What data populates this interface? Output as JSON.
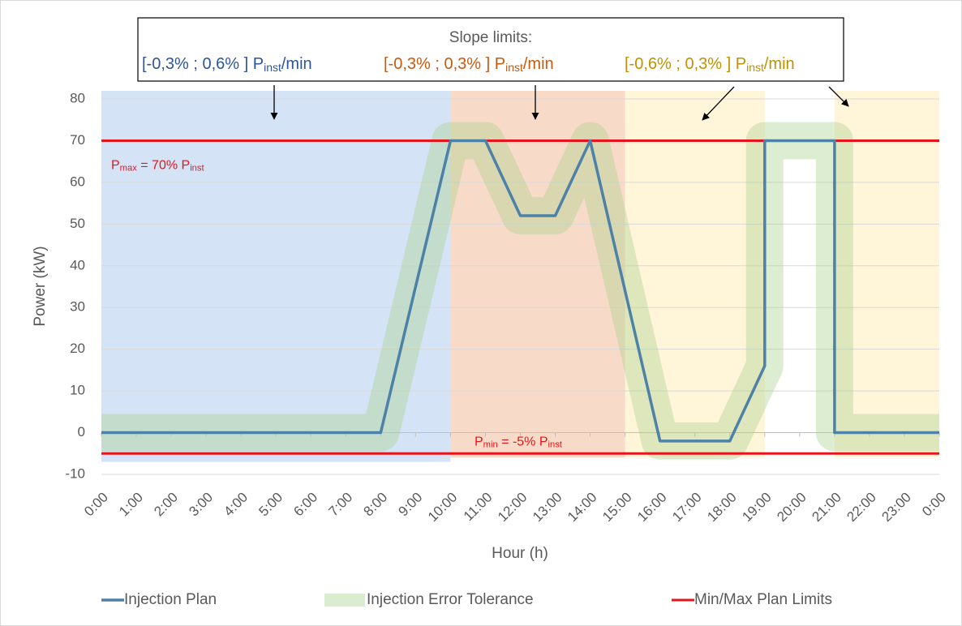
{
  "chart_data": {
    "type": "line",
    "y_label": "Power (kW)",
    "x_label": "Hour (h)",
    "xlim": [
      0,
      24
    ],
    "xticks": [
      {
        "value": 0,
        "label": "0:00"
      },
      {
        "value": 1,
        "label": "1:00"
      },
      {
        "value": 2,
        "label": "2:00"
      },
      {
        "value": 3,
        "label": "3:00"
      },
      {
        "value": 4,
        "label": "4:00"
      },
      {
        "value": 5,
        "label": "5:00"
      },
      {
        "value": 6,
        "label": "6:00"
      },
      {
        "value": 7,
        "label": "7:00"
      },
      {
        "value": 8,
        "label": "8:00"
      },
      {
        "value": 9,
        "label": "9:00"
      },
      {
        "value": 10,
        "label": "10:00"
      },
      {
        "value": 11,
        "label": "11:00"
      },
      {
        "value": 12,
        "label": "12:00"
      },
      {
        "value": 13,
        "label": "13:00"
      },
      {
        "value": 14,
        "label": "14:00"
      },
      {
        "value": 15,
        "label": "15:00"
      },
      {
        "value": 16,
        "label": "16:00"
      },
      {
        "value": 17,
        "label": "17:00"
      },
      {
        "value": 18,
        "label": "18:00"
      },
      {
        "value": 19,
        "label": "19:00"
      },
      {
        "value": 20,
        "label": "20:00"
      },
      {
        "value": 21,
        "label": "21:00"
      },
      {
        "value": 22,
        "label": "22:00"
      },
      {
        "value": 23,
        "label": "23:00"
      },
      {
        "value": 24,
        "label": "0:00"
      }
    ],
    "ylim": [
      -10,
      80
    ],
    "yticks": [
      -10,
      0,
      10,
      20,
      30,
      40,
      50,
      60,
      70,
      80
    ],
    "grid": true,
    "legend": "bottom",
    "series": [
      {
        "name": "Injection Plan",
        "color": "#4e81a8",
        "x": [
          0,
          8,
          10,
          11,
          12,
          13,
          14,
          16,
          18,
          19,
          19,
          21,
          21,
          24
        ],
        "values": [
          0,
          0,
          70,
          70,
          52,
          52,
          70,
          -2,
          -2,
          16,
          70,
          70,
          0,
          0
        ]
      },
      {
        "name": "Injection Error Tolerance",
        "color": "#a9d18e",
        "x": [
          0,
          8,
          10,
          11,
          12,
          13,
          14,
          16,
          18,
          19,
          19,
          21,
          21,
          24
        ],
        "values": [
          0,
          0,
          70,
          70,
          52,
          52,
          70,
          -2,
          -2,
          16,
          70,
          70,
          0,
          0
        ]
      },
      {
        "name": "Min/Max Plan Limits",
        "color": "#e8141c",
        "values": [
          70,
          -5
        ],
        "value_labels": [
          [
            "P",
            "max",
            " = 70% P",
            "inst"
          ],
          [
            "P",
            "min",
            " = -5% P",
            "inst"
          ]
        ]
      }
    ],
    "regions": [
      {
        "from": 0,
        "to": 10,
        "bottom": -7,
        "color": "#c5d9f1"
      },
      {
        "from": 10,
        "to": 15,
        "bottom": -6,
        "color": "#f4cdb4"
      },
      {
        "from": 15,
        "to": 19,
        "bottom": -6,
        "color": "#fff2cc"
      },
      {
        "from": 21,
        "to": 24,
        "bottom": -6,
        "color": "#fff2cc"
      }
    ],
    "annotation": {
      "title": "Slope limits:",
      "items": [
        {
          "text": [
            "[-0,3% ; 0,6% ] P",
            "inst",
            "/min"
          ],
          "color": "#2e5597"
        },
        {
          "text": [
            "[-0,3% ; 0,3% ] P",
            "inst",
            "/min"
          ],
          "color": "#c55a11"
        },
        {
          "text": [
            "[-0,6% ; 0,3% ] P",
            "inst",
            "/min"
          ],
          "color": "#bf9000"
        }
      ]
    }
  }
}
